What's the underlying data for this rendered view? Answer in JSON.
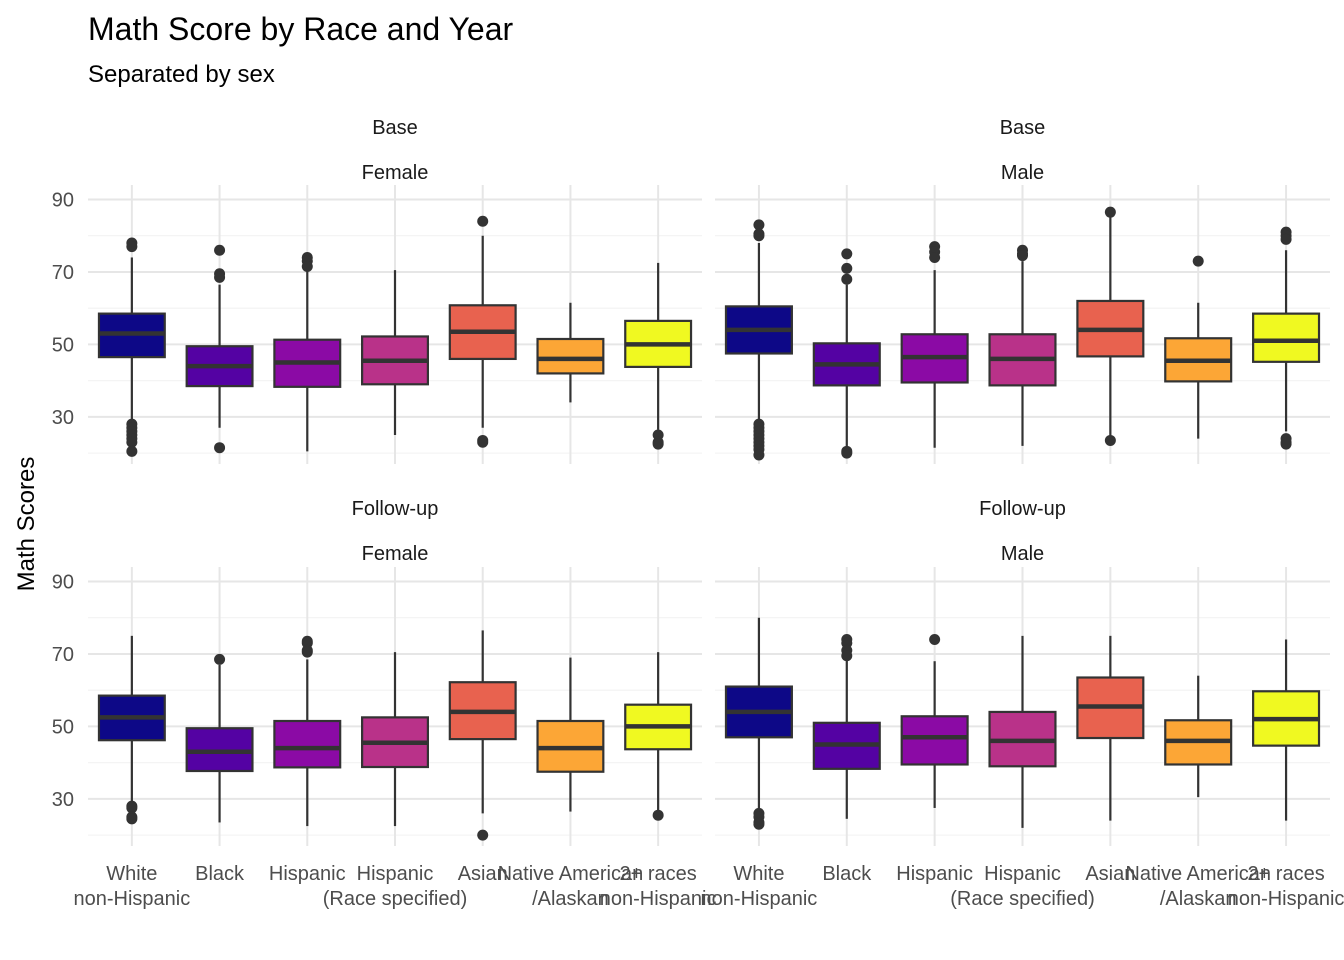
{
  "chart_data": {
    "type": "boxplot",
    "title": "Math Score by Race and Year",
    "subtitle": "Separated by sex",
    "ylabel": "Math Scores",
    "xlabel": "",
    "ylim": [
      17,
      94
    ],
    "yticks": [
      30,
      50,
      70,
      90
    ],
    "grid": true,
    "categories": [
      [
        "White",
        "non-Hispanic"
      ],
      [
        "Black"
      ],
      [
        "Hispanic"
      ],
      [
        "Hispanic",
        "(Race specified)"
      ],
      [
        "Asian"
      ],
      [
        "Native American",
        "/Alaskan"
      ],
      [
        "2+ races",
        "non-Hispanic"
      ]
    ],
    "colors": [
      "#0d0887",
      "#5402a3",
      "#8b0aa5",
      "#b93289",
      "#e8624f",
      "#fca636",
      "#f0f921"
    ],
    "panels": [
      {
        "strip": [
          "Base",
          "Female"
        ],
        "boxes": [
          {
            "lower": 20.5,
            "q1": 46.5,
            "median": 53,
            "q3": 58.5,
            "upper": 74,
            "outliers": [
              78,
              77,
              28,
              27,
              26,
              25,
              24,
              23,
              20.5
            ]
          },
          {
            "lower": 27,
            "q1": 38.5,
            "median": 44,
            "q3": 49.5,
            "upper": 66.5,
            "outliers": [
              76,
              69.5,
              68.5,
              21.5
            ]
          },
          {
            "lower": 20.5,
            "q1": 38.3,
            "median": 45,
            "q3": 51.3,
            "upper": 70.5,
            "outliers": [
              74,
              73,
              71.5
            ]
          },
          {
            "lower": 25,
            "q1": 39,
            "median": 45.5,
            "q3": 52.2,
            "upper": 70.5,
            "outliers": []
          },
          {
            "lower": 27,
            "q1": 46,
            "median": 53.5,
            "q3": 60.8,
            "upper": 80,
            "outliers": [
              84,
              23.5,
              23
            ]
          },
          {
            "lower": 34,
            "q1": 42,
            "median": 46,
            "q3": 51.5,
            "upper": 61.5,
            "outliers": []
          },
          {
            "lower": 26.5,
            "q1": 43.8,
            "median": 50,
            "q3": 56.5,
            "upper": 72.5,
            "outliers": [
              25,
              23,
              22.5
            ]
          }
        ]
      },
      {
        "strip": [
          "Base",
          "Male"
        ],
        "boxes": [
          {
            "lower": 19.5,
            "q1": 47.5,
            "median": 54,
            "q3": 60.5,
            "upper": 78,
            "outliers": [
              83,
              80.5,
              80,
              28,
              27,
              26,
              25,
              24,
              23,
              22,
              21,
              19.5
            ]
          },
          {
            "lower": 20,
            "q1": 38.7,
            "median": 44.5,
            "q3": 50.3,
            "upper": 66.5,
            "outliers": [
              75,
              71,
              68,
              20.5,
              20
            ]
          },
          {
            "lower": 21.5,
            "q1": 39.5,
            "median": 46.5,
            "q3": 52.8,
            "upper": 70.5,
            "outliers": [
              77,
              75.5,
              74
            ]
          },
          {
            "lower": 22,
            "q1": 38.7,
            "median": 46,
            "q3": 52.8,
            "upper": 73,
            "outliers": [
              76,
              75,
              74.5
            ]
          },
          {
            "lower": 23.5,
            "q1": 46.7,
            "median": 54,
            "q3": 62,
            "upper": 86,
            "outliers": [
              86.5,
              23.5
            ]
          },
          {
            "lower": 24,
            "q1": 39.8,
            "median": 45.5,
            "q3": 51.7,
            "upper": 61.5,
            "outliers": [
              73
            ]
          },
          {
            "lower": 26,
            "q1": 45.2,
            "median": 51,
            "q3": 58.5,
            "upper": 76,
            "outliers": [
              81,
              80,
              79,
              24,
              23,
              22.5
            ]
          }
        ]
      },
      {
        "strip": [
          "Follow-up",
          "Female"
        ],
        "boxes": [
          {
            "lower": 24.5,
            "q1": 46.2,
            "median": 52.5,
            "q3": 58.5,
            "upper": 75,
            "outliers": [
              28,
              27.5,
              25,
              24.5
            ]
          },
          {
            "lower": 23.5,
            "q1": 37.7,
            "median": 43,
            "q3": 49.5,
            "upper": 67,
            "outliers": [
              68.5
            ]
          },
          {
            "lower": 22.5,
            "q1": 38.7,
            "median": 44,
            "q3": 51.5,
            "upper": 68.5,
            "outliers": [
              73.5,
              73,
              71,
              70.5
            ]
          },
          {
            "lower": 22.5,
            "q1": 38.8,
            "median": 45.5,
            "q3": 52.5,
            "upper": 70.5,
            "outliers": []
          },
          {
            "lower": 26,
            "q1": 46.5,
            "median": 54,
            "q3": 62.2,
            "upper": 76.5,
            "outliers": [
              20
            ]
          },
          {
            "lower": 26.5,
            "q1": 37.5,
            "median": 44,
            "q3": 51.5,
            "upper": 69,
            "outliers": []
          },
          {
            "lower": 26,
            "q1": 43.7,
            "median": 50,
            "q3": 56,
            "upper": 70.5,
            "outliers": [
              25.5
            ]
          }
        ]
      },
      {
        "strip": [
          "Follow-up",
          "Male"
        ],
        "boxes": [
          {
            "lower": 26,
            "q1": 47,
            "median": 54,
            "q3": 61,
            "upper": 80,
            "outliers": [
              26,
              25,
              23.5,
              23
            ]
          },
          {
            "lower": 24.5,
            "q1": 38.3,
            "median": 45,
            "q3": 51,
            "upper": 69,
            "outliers": [
              74,
              73,
              71,
              69.5
            ]
          },
          {
            "lower": 27.5,
            "q1": 39.5,
            "median": 47,
            "q3": 52.8,
            "upper": 68,
            "outliers": [
              74
            ]
          },
          {
            "lower": 22,
            "q1": 39,
            "median": 46,
            "q3": 54,
            "upper": 75,
            "outliers": []
          },
          {
            "lower": 24,
            "q1": 46.8,
            "median": 55.5,
            "q3": 63.5,
            "upper": 75,
            "outliers": []
          },
          {
            "lower": 30.5,
            "q1": 39.5,
            "median": 46,
            "q3": 51.7,
            "upper": 64,
            "outliers": []
          },
          {
            "lower": 24,
            "q1": 44.7,
            "median": 52,
            "q3": 59.7,
            "upper": 74,
            "outliers": []
          }
        ]
      }
    ]
  }
}
